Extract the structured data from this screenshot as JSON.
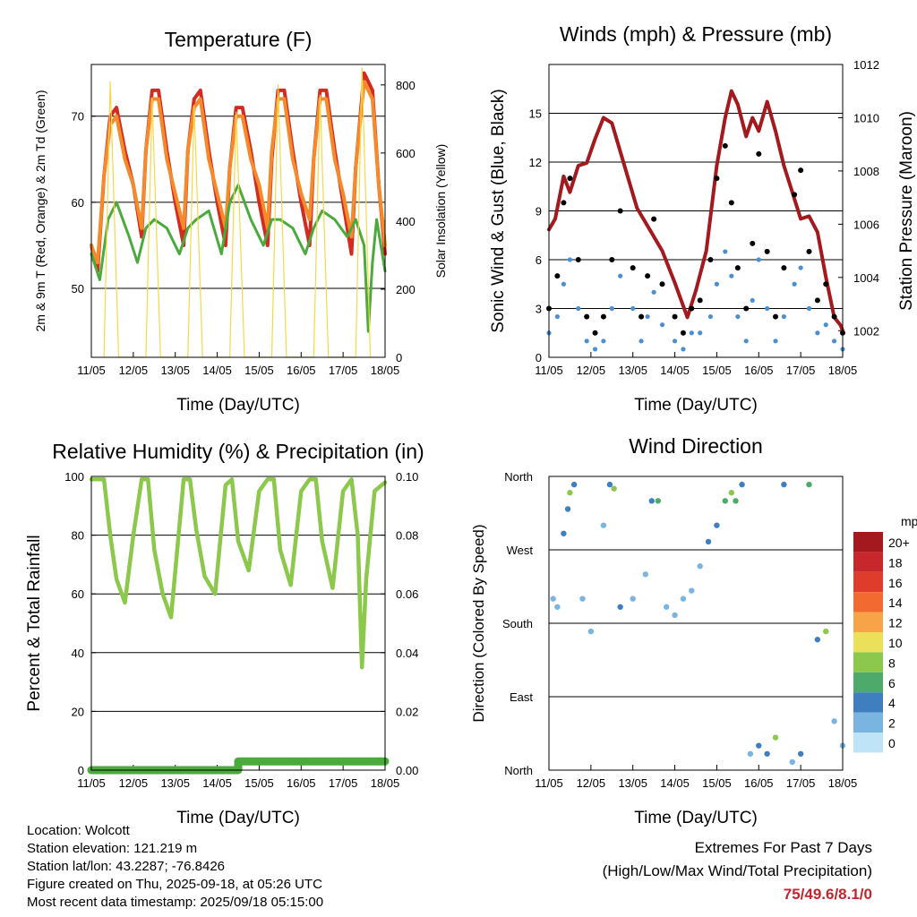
{
  "colors": {
    "red": "#d42a20",
    "orange": "#f58a2b",
    "green": "#4aaa3c",
    "yellow": "#f5d84a",
    "maroon": "#a2191e",
    "black": "#000000",
    "blue": "#4a8fd0",
    "lightgreen": "#8cc84b"
  },
  "xlabel": "Time (Day/UTC)",
  "xticks": [
    "11/05",
    "12/05",
    "13/05",
    "14/05",
    "15/05",
    "16/05",
    "17/05",
    "18/05"
  ],
  "info": {
    "location": "Location: Wolcott",
    "elevation": "Station elevation: 121.219 m",
    "latlon": "Station lat/lon: 43.2287; -76.8426",
    "created": "Figure created on Thu, 2025-09-18, at 05:26 UTC",
    "recent": "Most recent data timestamp: 2025/09/18 05:15:00"
  },
  "extremes": {
    "title": "Extremes For Past 7 Days",
    "subtitle": "(High/Low/Max Wind/Total Precipitation)",
    "value": "75/49.6/8.1/0"
  },
  "chart_data": [
    {
      "type": "line",
      "title": "Temperature (F)",
      "xlabel": "Time (Day/UTC)",
      "ylabel": "2m & 9m T (Red, Orange) & 2m Td (Green)",
      "ylabel_right": "Solar Insolation (Yellow)",
      "ylim": [
        42,
        76
      ],
      "yticks": [
        50,
        60,
        70
      ],
      "ylim_right": [
        0,
        860
      ],
      "yticks_right": [
        0,
        200,
        400,
        600,
        800
      ],
      "x_range": [
        0,
        7
      ],
      "series": [
        {
          "name": "2m T",
          "color": "red",
          "x": [
            0,
            0.15,
            0.3,
            0.45,
            0.6,
            0.8,
            1.0,
            1.2,
            1.3,
            1.45,
            1.6,
            1.8,
            2.0,
            2.2,
            2.3,
            2.45,
            2.6,
            2.8,
            3.0,
            3.2,
            3.3,
            3.45,
            3.6,
            3.8,
            4.0,
            4.2,
            4.3,
            4.45,
            4.6,
            4.8,
            5.0,
            5.2,
            5.3,
            5.45,
            5.6,
            5.8,
            6.0,
            6.2,
            6.3,
            6.5,
            6.7,
            6.85,
            7.0
          ],
          "y": [
            55,
            52,
            63,
            70,
            71,
            66,
            62,
            56,
            66,
            73,
            73,
            66,
            60,
            55,
            66,
            72,
            73,
            66,
            60,
            55,
            64,
            71,
            71,
            66,
            60,
            55,
            65,
            73,
            73,
            66,
            60,
            55,
            65,
            73,
            73,
            66,
            60,
            54,
            64,
            75,
            73,
            62,
            54
          ]
        },
        {
          "name": "9m T",
          "color": "orange",
          "x": [
            0,
            0.15,
            0.3,
            0.45,
            0.6,
            0.8,
            1.0,
            1.2,
            1.3,
            1.45,
            1.6,
            1.8,
            2.0,
            2.2,
            2.3,
            2.45,
            2.6,
            2.8,
            3.0,
            3.2,
            3.3,
            3.45,
            3.6,
            3.8,
            4.0,
            4.2,
            4.3,
            4.45,
            4.6,
            4.8,
            5.0,
            5.2,
            5.3,
            5.45,
            5.6,
            5.8,
            6.0,
            6.2,
            6.3,
            6.5,
            6.7,
            6.85,
            7.0
          ],
          "y": [
            55,
            53,
            63,
            69,
            70,
            65,
            62,
            57,
            66,
            72,
            72,
            65,
            61,
            57,
            66,
            71,
            72,
            65,
            61,
            57,
            64,
            70,
            70,
            65,
            62,
            57,
            66,
            72,
            72,
            65,
            61,
            58,
            65,
            72,
            72,
            65,
            61,
            56,
            64,
            74,
            72,
            62,
            55
          ]
        },
        {
          "name": "2m Td",
          "color": "green",
          "x": [
            0,
            0.2,
            0.4,
            0.6,
            0.9,
            1.1,
            1.3,
            1.5,
            1.8,
            2.1,
            2.3,
            2.5,
            2.8,
            3.1,
            3.3,
            3.5,
            3.8,
            4.1,
            4.3,
            4.5,
            4.8,
            5.1,
            5.3,
            5.5,
            5.8,
            6.1,
            6.3,
            6.5,
            6.6,
            6.7,
            6.8,
            7.0
          ],
          "y": [
            54,
            51,
            58,
            60,
            56,
            53,
            57,
            58,
            57,
            54,
            57,
            58,
            59,
            54,
            60,
            62,
            58,
            55,
            58,
            58,
            57,
            54,
            57,
            59,
            58,
            56,
            58,
            55,
            45,
            53,
            58,
            52
          ]
        },
        {
          "name": "Solar Insolation",
          "color": "yellow",
          "axis": "right",
          "x": [
            0.3,
            0.45,
            0.65,
            1.3,
            1.45,
            1.65,
            2.3,
            2.45,
            2.65,
            3.3,
            3.45,
            3.65,
            4.3,
            4.45,
            4.65,
            5.3,
            5.45,
            5.65,
            6.3,
            6.45,
            6.65
          ],
          "y": [
            0,
            810,
            0,
            0,
            760,
            0,
            0,
            740,
            0,
            0,
            720,
            0,
            0,
            800,
            0,
            0,
            770,
            0,
            0,
            850,
            0
          ]
        }
      ]
    },
    {
      "type": "scatter",
      "title": "Winds (mph) & Pressure (mb)",
      "xlabel": "Time (Day/UTC)",
      "ylabel": "Sonic Wind & Gust (Blue, Black)",
      "ylabel_right": "Station Pressure (Maroon)",
      "ylim": [
        0,
        18
      ],
      "yticks": [
        0,
        3,
        6,
        9,
        12,
        15
      ],
      "ylim_right": [
        1001,
        1012
      ],
      "yticks_right": [
        1002,
        1004,
        1006,
        1008,
        1010,
        1012
      ],
      "x_range": [
        0,
        7
      ],
      "series": [
        {
          "name": "Station Pressure",
          "color": "maroon",
          "type": "line",
          "axis": "right",
          "x": [
            0,
            0.15,
            0.35,
            0.5,
            0.7,
            0.9,
            1.1,
            1.3,
            1.5,
            1.8,
            2.1,
            2.4,
            2.7,
            3.0,
            3.3,
            3.5,
            3.75,
            4.0,
            4.2,
            4.35,
            4.5,
            4.7,
            4.85,
            5.0,
            5.2,
            5.4,
            5.6,
            5.8,
            6.0,
            6.2,
            6.4,
            6.6,
            6.8,
            6.95,
            7.0
          ],
          "y": [
            1005.8,
            1006.2,
            1007.8,
            1007.2,
            1008.2,
            1008.3,
            1009.2,
            1010.0,
            1009.8,
            1008.2,
            1006.6,
            1005.8,
            1005.0,
            1003.8,
            1002.5,
            1003.5,
            1005.0,
            1008.2,
            1010.0,
            1011.0,
            1010.5,
            1009.3,
            1010.0,
            1009.5,
            1010.6,
            1009.5,
            1008.2,
            1007.2,
            1006.2,
            1006.3,
            1005.7,
            1004.0,
            1002.5,
            1002.2,
            1002.0
          ]
        },
        {
          "name": "Wind",
          "color": "blue",
          "x": [
            0,
            0.2,
            0.35,
            0.5,
            0.7,
            0.9,
            1.1,
            1.3,
            1.5,
            1.7,
            2.0,
            2.2,
            2.35,
            2.5,
            2.7,
            3.0,
            3.2,
            3.4,
            3.6,
            3.85,
            4.0,
            4.2,
            4.35,
            4.5,
            4.7,
            4.85,
            5.0,
            5.2,
            5.4,
            5.6,
            5.85,
            6.0,
            6.2,
            6.4,
            6.6,
            6.8,
            7.0
          ],
          "y": [
            1.5,
            2.5,
            4.5,
            6.0,
            3.0,
            1.0,
            0.5,
            1.0,
            3.0,
            5.0,
            3.0,
            1.0,
            2.5,
            4.0,
            2.0,
            1.0,
            0.5,
            1.5,
            1.5,
            2.5,
            4.5,
            6.5,
            5.0,
            2.5,
            1.0,
            3.5,
            6.0,
            3.0,
            1.0,
            2.5,
            4.5,
            5.5,
            3.0,
            1.5,
            2.0,
            1.0,
            0.5
          ]
        },
        {
          "name": "Gust",
          "color": "black",
          "x": [
            0,
            0.2,
            0.35,
            0.5,
            0.7,
            0.9,
            1.1,
            1.3,
            1.5,
            1.7,
            2.0,
            2.2,
            2.35,
            2.5,
            2.7,
            3.0,
            3.2,
            3.4,
            3.6,
            3.85,
            4.0,
            4.2,
            4.35,
            4.5,
            4.7,
            4.85,
            5.0,
            5.2,
            5.4,
            5.6,
            5.85,
            6.0,
            6.2,
            6.4,
            6.6,
            6.8,
            7.0
          ],
          "y": [
            3.0,
            5.0,
            9.5,
            11.0,
            6.0,
            2.5,
            1.5,
            2.5,
            6.0,
            9.0,
            5.5,
            2.5,
            5.0,
            8.5,
            4.5,
            2.5,
            1.5,
            3.0,
            3.5,
            6.0,
            11.0,
            13.0,
            9.5,
            5.5,
            3.0,
            7.0,
            12.5,
            6.5,
            2.5,
            5.5,
            10.0,
            11.5,
            6.5,
            3.5,
            4.5,
            2.5,
            1.5
          ]
        }
      ]
    },
    {
      "type": "line",
      "title": "Relative Humidity (%) & Precipitation (in)",
      "xlabel": "Time (Day/UTC)",
      "ylabel": "Percent & Total Rainfall",
      "ylim": [
        0,
        100
      ],
      "yticks": [
        0,
        20,
        40,
        60,
        80,
        100
      ],
      "ylim_right": [
        0,
        0.1
      ],
      "yticks_right": [
        "0.00",
        "0.02",
        "0.04",
        "0.06",
        "0.08",
        "0.10"
      ],
      "x_range": [
        0,
        7
      ],
      "series": [
        {
          "name": "Relative Humidity",
          "color": "lightgreen",
          "x": [
            0,
            0.3,
            0.45,
            0.6,
            0.8,
            1.0,
            1.2,
            1.35,
            1.5,
            1.7,
            1.9,
            2.2,
            2.35,
            2.5,
            2.7,
            2.95,
            3.2,
            3.35,
            3.5,
            3.75,
            4.0,
            4.2,
            4.35,
            4.5,
            4.75,
            5.0,
            5.2,
            5.35,
            5.5,
            5.75,
            6.0,
            6.2,
            6.35,
            6.45,
            6.55,
            6.75,
            7.0
          ],
          "y": [
            99,
            99,
            80,
            65,
            57,
            80,
            99,
            99,
            75,
            60,
            52,
            99,
            99,
            82,
            66,
            60,
            97,
            99,
            78,
            68,
            95,
            99,
            99,
            75,
            63,
            95,
            99,
            99,
            78,
            62,
            95,
            99,
            80,
            35,
            65,
            95,
            98
          ]
        },
        {
          "name": "Total Precipitation",
          "color": "green",
          "axis": "right",
          "x": [
            0,
            3.5,
            3.5,
            7.0
          ],
          "y": [
            0.0,
            0.0,
            0.003,
            0.003
          ]
        }
      ]
    },
    {
      "type": "scatter",
      "title": "Wind Direction",
      "xlabel": "Time (Day/UTC)",
      "ylabel": "Direction (Colored By Speed)",
      "ylim": [
        0,
        360
      ],
      "yticks": [
        "North",
        "East",
        "South",
        "West",
        "North"
      ],
      "x_range": [
        0,
        7
      ],
      "colorbar": {
        "unit": "mph",
        "labels": [
          "20+",
          "18",
          "16",
          "14",
          "12",
          "10",
          "8",
          "6",
          "4",
          "2",
          "0"
        ],
        "colors": [
          "#a3191e",
          "#c7282c",
          "#e03c2c",
          "#f26a30",
          "#f7a448",
          "#ebe05a",
          "#8cc84b",
          "#4daa6a",
          "#3f7fc0",
          "#7ab4e0",
          "#bfe3f7"
        ]
      },
      "series": [
        {
          "name": "Direction",
          "speed_colored": true,
          "x": [
            0.1,
            0.2,
            0.35,
            0.45,
            0.5,
            0.6,
            0.8,
            1.0,
            1.3,
            1.45,
            1.55,
            1.7,
            2.0,
            2.3,
            2.45,
            2.6,
            2.8,
            3.0,
            3.2,
            3.4,
            3.6,
            3.8,
            4.0,
            4.2,
            4.35,
            4.45,
            4.6,
            4.8,
            5.0,
            5.2,
            5.4,
            5.6,
            5.8,
            6.0,
            6.2,
            6.4,
            6.6,
            6.8,
            7.0
          ],
          "y": [
            210,
            200,
            290,
            320,
            340,
            350,
            210,
            170,
            300,
            350,
            345,
            200,
            210,
            240,
            330,
            330,
            200,
            190,
            210,
            220,
            250,
            280,
            300,
            330,
            340,
            330,
            350,
            20,
            30,
            20,
            40,
            350,
            10,
            20,
            350,
            160,
            170,
            60,
            30
          ],
          "speed": [
            2,
            1,
            3,
            4,
            7,
            3,
            1,
            2,
            2,
            4,
            8,
            3,
            1,
            2,
            3,
            5,
            2,
            1,
            1,
            2,
            2,
            3,
            4,
            6,
            8,
            5,
            3,
            1,
            3,
            4,
            7,
            3,
            2,
            4,
            6,
            3,
            7,
            2,
            1
          ]
        }
      ]
    }
  ]
}
